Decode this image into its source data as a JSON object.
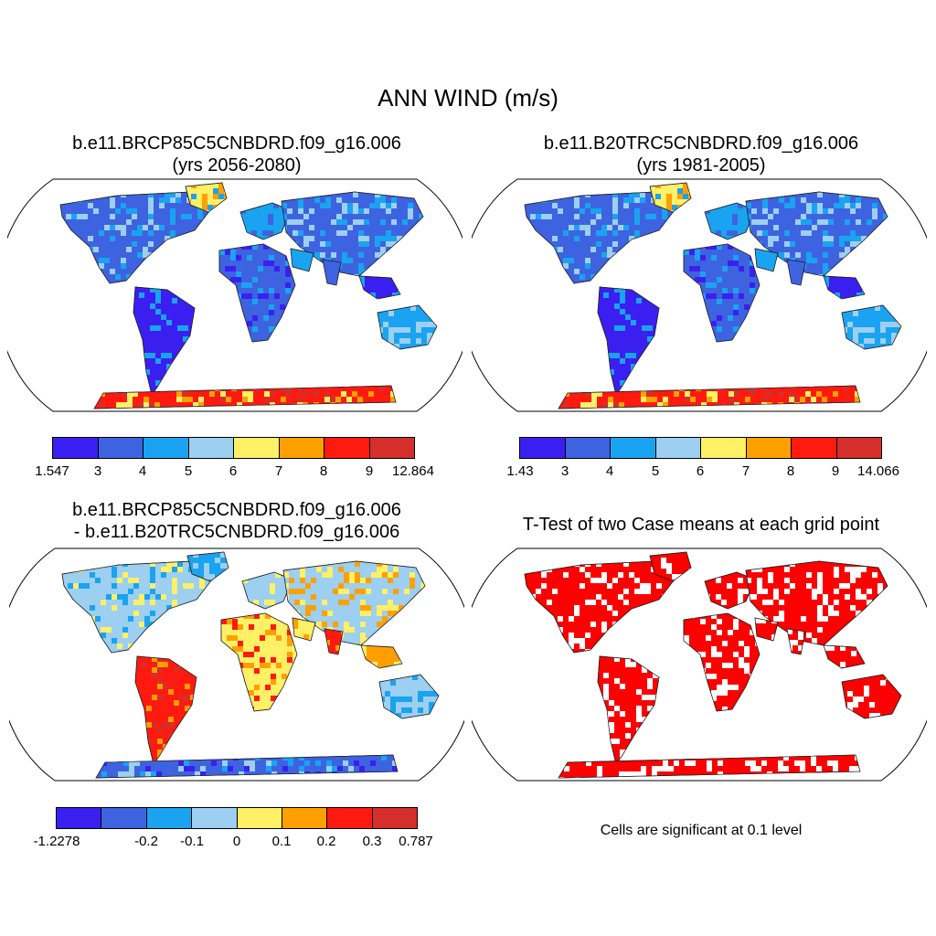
{
  "title": "ANN WIND (m/s)",
  "palette": [
    "#3b1ff0",
    "#3e63e0",
    "#1aa3f0",
    "#9ccff0",
    "#fff065",
    "#ffa000",
    "#ff1a10",
    "#d42f2a"
  ],
  "panels": [
    {
      "title_line1": "b.e11.BRCP85C5CNBDRD.f09_g16.006",
      "title_line2": "(yrs 2056-2080)",
      "colorbar_ticks": [
        "1.547",
        "3",
        "4",
        "5",
        "6",
        "7",
        "8",
        "9",
        "12.864"
      ]
    },
    {
      "title_line1": "b.e11.B20TRC5CNBDRD.f09_g16.006",
      "title_line2": "(yrs 1981-2005)",
      "colorbar_ticks": [
        "1.43",
        "3",
        "4",
        "5",
        "6",
        "7",
        "8",
        "9",
        "14.066"
      ]
    },
    {
      "title_line1": "b.e11.BRCP85C5CNBDRD.f09_g16.006",
      "title_line2": "- b.e11.B20TRC5CNBDRD.f09_g16.006",
      "colorbar_ticks": [
        "-1.2278",
        "-0.2",
        "-0.1",
        "0",
        "0.1",
        "0.2",
        "0.3",
        "0.787"
      ]
    },
    {
      "title_line1": "T-Test of two Case means at each grid point",
      "note": "Cells are significant at 0.1 level",
      "significance_color": "#ff0000"
    }
  ]
}
